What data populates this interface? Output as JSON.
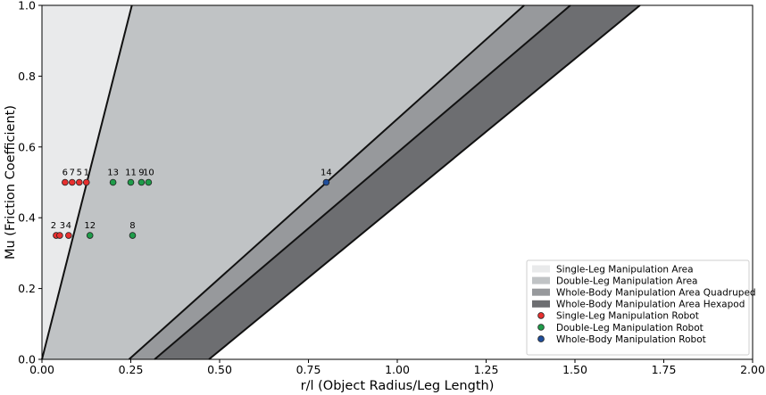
{
  "chart_data": {
    "type": "scatter",
    "title": "",
    "xlabel": "r/l (Object Radius/Leg Length)",
    "ylabel": "Mu (Friction Coefficient)",
    "xlim": [
      0,
      2.0
    ],
    "ylim": [
      0,
      1.0
    ],
    "xticks": [
      "0.00",
      "0.25",
      "0.50",
      "0.75",
      "1.00",
      "1.25",
      "1.50",
      "1.75",
      "2.00"
    ],
    "yticks": [
      "0.0",
      "0.2",
      "0.4",
      "0.6",
      "0.8",
      "1.0"
    ],
    "grid": false,
    "legend_position": "lower-right",
    "areas": [
      {
        "name": "Single-Leg Manipulation Area",
        "color": "#e9eaeb"
      },
      {
        "name": "Double-Leg Manipulation Area",
        "color": "#c0c3c5"
      },
      {
        "name": "Whole-Body Manipulation Area Quadruped",
        "color": "#97999c"
      },
      {
        "name": "Whole-Body Manipulation Area Hexapod",
        "color": "#6d6e71"
      }
    ],
    "boundaries": [
      {
        "x0": 0.0,
        "x1": 0.253
      },
      {
        "x0": 0.245,
        "x1": 1.357
      },
      {
        "x0": 0.317,
        "x1": 1.487
      },
      {
        "x0": 0.47,
        "x1": 1.683
      }
    ],
    "series": [
      {
        "name": "Single-Leg Manipulation Robot",
        "color": "#e8302f",
        "points": [
          {
            "x": 0.04,
            "y": 0.35,
            "label": "2"
          },
          {
            "x": 0.05,
            "y": 0.35,
            "label": "3"
          },
          {
            "x": 0.075,
            "y": 0.35,
            "label": "4"
          },
          {
            "x": 0.065,
            "y": 0.5,
            "label": "6"
          },
          {
            "x": 0.085,
            "y": 0.5,
            "label": "7"
          },
          {
            "x": 0.105,
            "y": 0.5,
            "label": "5"
          },
          {
            "x": 0.125,
            "y": 0.5,
            "label": "1"
          }
        ]
      },
      {
        "name": "Double-Leg Manipulation Robot",
        "color": "#1f9c4a",
        "points": [
          {
            "x": 0.135,
            "y": 0.35,
            "label": "12"
          },
          {
            "x": 0.255,
            "y": 0.35,
            "label": "8"
          },
          {
            "x": 0.2,
            "y": 0.5,
            "label": "13"
          },
          {
            "x": 0.25,
            "y": 0.5,
            "label": "11"
          },
          {
            "x": 0.28,
            "y": 0.5,
            "label": "9"
          },
          {
            "x": 0.3,
            "y": 0.5,
            "label": "10"
          }
        ]
      },
      {
        "name": "Whole-Body Manipulation Robot",
        "color": "#1f4e9c",
        "points": [
          {
            "x": 0.8,
            "y": 0.5,
            "label": "14"
          }
        ]
      }
    ]
  }
}
